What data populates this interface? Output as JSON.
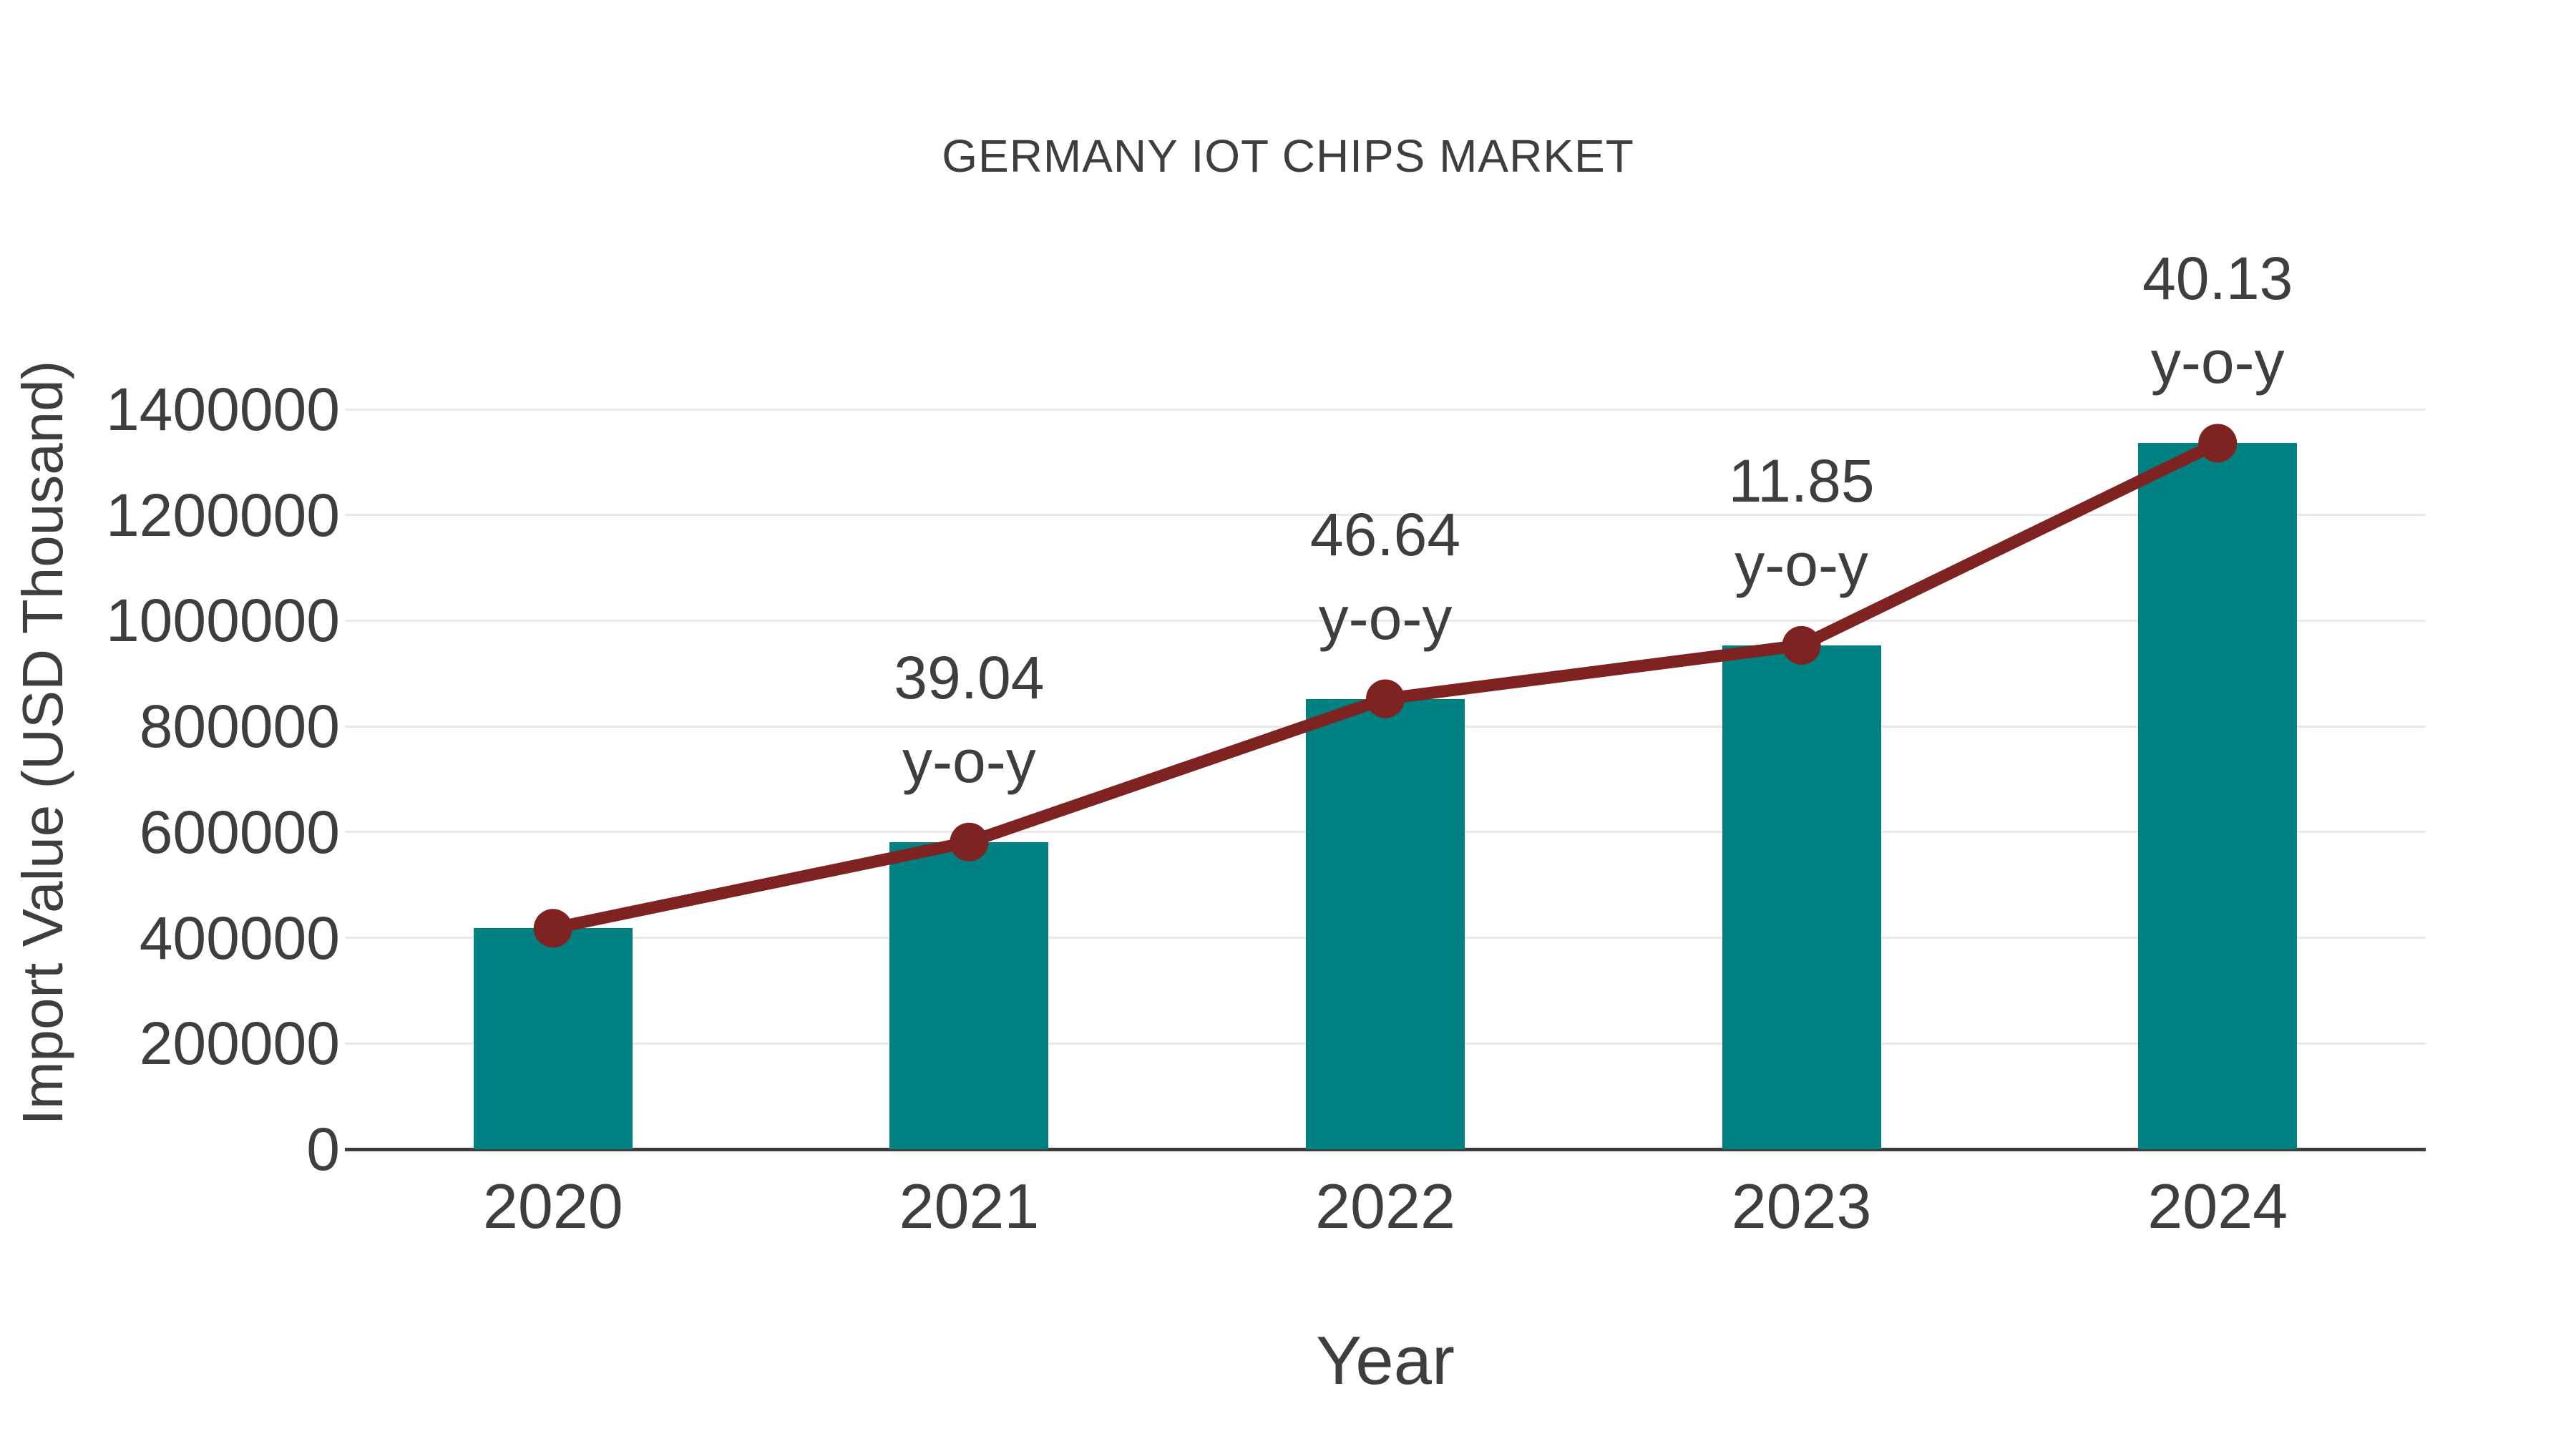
{
  "chart_data": {
    "type": "bar",
    "title": "GERMANY IOT CHIPS MARKET",
    "xlabel": "Year",
    "ylabel": "Import Value (USD Thousand)",
    "categories": [
      "2020",
      "2021",
      "2022",
      "2023",
      "2024"
    ],
    "series": [
      {
        "name": "Import Value",
        "type": "bar",
        "color": "#008080",
        "values": [
          418000,
          581200,
          852300,
          953300,
          1335900
        ]
      },
      {
        "name": "y-o-y growth",
        "type": "line",
        "color": "#7e2222",
        "values_percent": [
          null,
          39.04,
          46.64,
          11.85,
          40.13
        ]
      }
    ],
    "annotations": [
      {
        "category": "2021",
        "line1": "39.04",
        "line2": "y-o-y"
      },
      {
        "category": "2022",
        "line1": "46.64",
        "line2": "y-o-y"
      },
      {
        "category": "2023",
        "line1": "11.85",
        "line2": "y-o-y"
      },
      {
        "category": "2024",
        "line1": "40.13",
        "line2": "y-o-y"
      }
    ],
    "y_axis": {
      "min": 0,
      "max": 1400000,
      "tick_step": 200000,
      "tick_labels": [
        "0",
        "200000",
        "400000",
        "600000",
        "800000",
        "1000000",
        "1200000",
        "1400000"
      ]
    },
    "grid": "horizontal",
    "legend_position": "none",
    "colors": {
      "bar": "#008080",
      "line": "#7e2222",
      "marker": "#7e2222",
      "text": "#3e3e3e",
      "gridline": "#e9e9e9",
      "axis": "#3c3c3c",
      "background": "#ffffff"
    }
  }
}
